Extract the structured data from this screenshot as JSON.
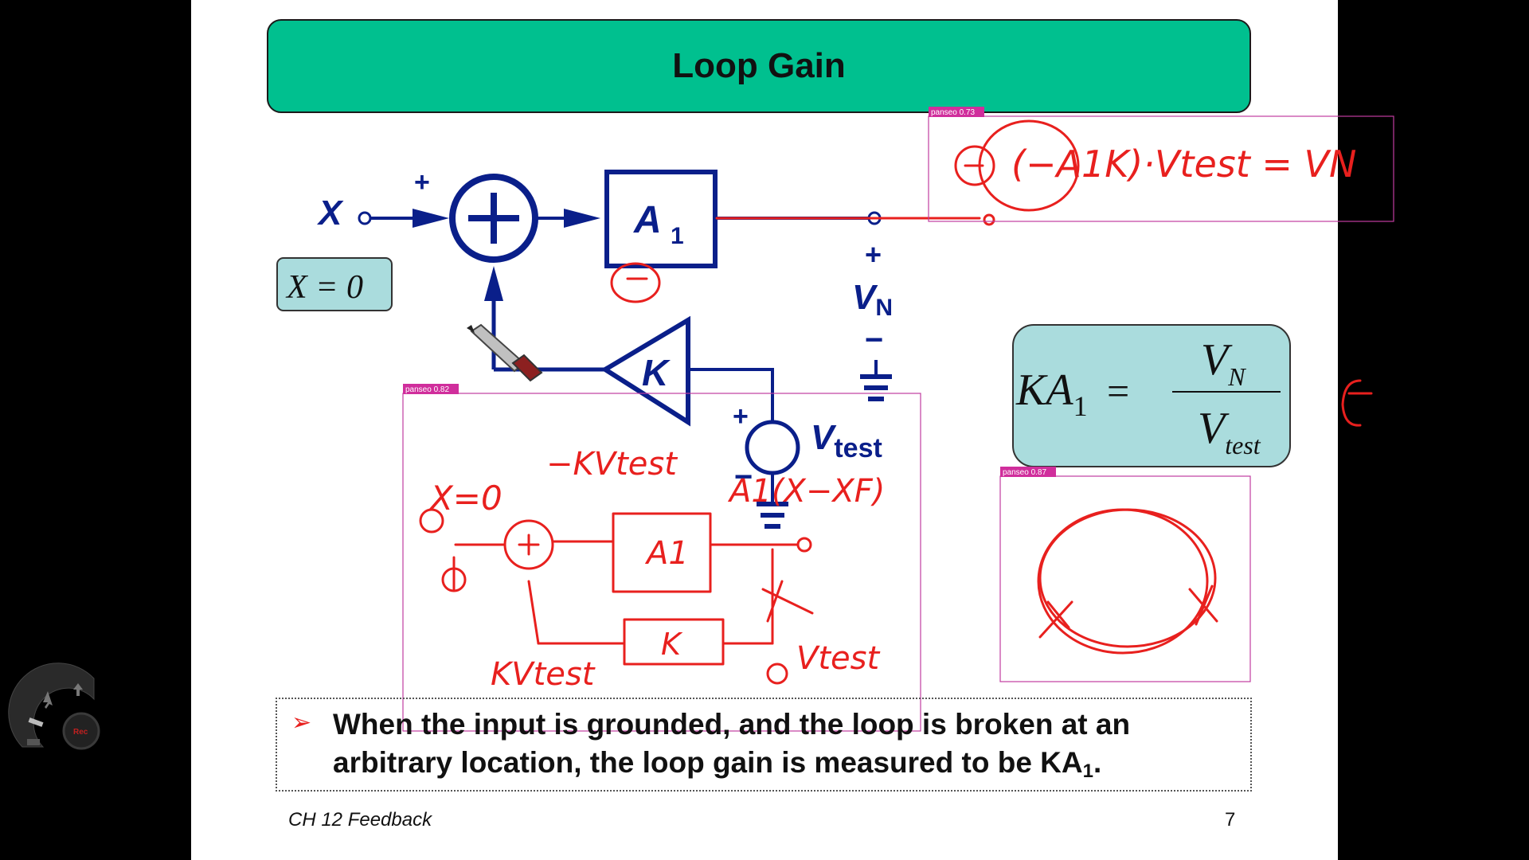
{
  "slide": {
    "title": "Loop Gain",
    "bullet_marker": "➢",
    "bullet_text_main": "When the input is grounded, and the loop is broken at an arbitrary location, the loop gain is measured to be KA",
    "bullet_text_sub": "1",
    "bullet_text_end": ".",
    "footer_left": "CH 12 Feedback",
    "page_number": "7"
  },
  "diagram": {
    "input_label": "X",
    "plus_sign": "+",
    "minus_sign": "−",
    "amp_label": "A",
    "amp_sub": "1",
    "feedback_label": "K",
    "vn_label": "V",
    "vn_sub": "N",
    "vtest_label": "V",
    "vtest_sub": "test",
    "x_zero": "X = 0",
    "formula_lhs": "KA",
    "formula_lhs_sub": "1",
    "formula_eq": "=",
    "formula_num": "V",
    "formula_num_sub": "N",
    "formula_den": "V",
    "formula_den_sub": "test"
  },
  "detections": [
    {
      "label": "panseo 0.73"
    },
    {
      "label": "panseo 0.82"
    },
    {
      "label": "panseo 0.87"
    }
  ],
  "annotations": {
    "top_equation": "(−A1K)·Vtest = VN",
    "x_note": "X=0",
    "ktest": "−KVtest",
    "a1_expr": "A1(X−XF)",
    "a1_box": "A1",
    "k_box": "K",
    "kvtest": "KVtest",
    "vtest": "Vtest"
  },
  "toolwheel": {
    "rec_label": "Rec"
  },
  "colors": {
    "title_bg": "#00c08f",
    "ink": "#e8201e",
    "circuit": "#0a1f8a",
    "formula_bg": "#aadcdd"
  }
}
